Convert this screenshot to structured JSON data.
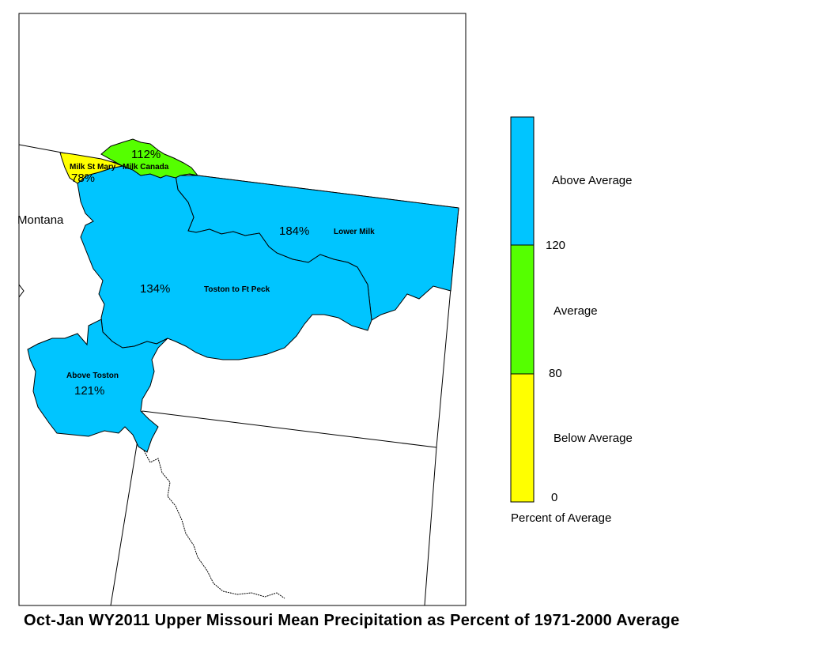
{
  "title": "Oct-Jan WY2011 Upper Missouri Mean Precipitation as Percent of 1971-2000 Average",
  "state_label": "Montana",
  "colors": {
    "above": "#00c5ff",
    "average": "#55ff00",
    "below": "#ffff00",
    "outline": "#000000"
  },
  "basins": [
    {
      "name": "Milk St Mary",
      "percent": "78%",
      "category": "below"
    },
    {
      "name": "Milk Canada",
      "percent": "112%",
      "category": "average"
    },
    {
      "name": "Lower Milk",
      "percent": "184%",
      "category": "above"
    },
    {
      "name": "Toston to Ft Peck",
      "percent": "134%",
      "category": "above"
    },
    {
      "name": "Above Toston",
      "percent": "121%",
      "category": "above"
    }
  ],
  "legend": {
    "title": "Percent of Average",
    "categories": [
      {
        "label": "Above Average",
        "color": "#00c5ff"
      },
      {
        "label": "Average",
        "color": "#55ff00"
      },
      {
        "label": "Below Average",
        "color": "#ffff00"
      }
    ],
    "breaks": [
      "120",
      "80",
      "0"
    ]
  }
}
